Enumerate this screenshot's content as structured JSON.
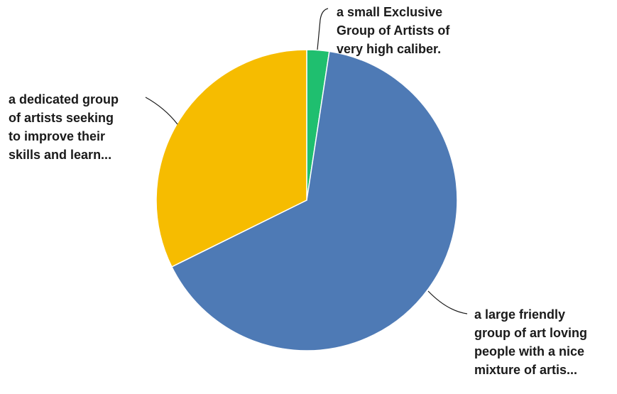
{
  "chart_data": {
    "type": "pie",
    "title": "",
    "start_angle_deg": 0,
    "direction": "clockwise",
    "slices": [
      {
        "category": "a small Exclusive Group of Artists of very high caliber.",
        "label_lines": [
          "a small Exclusive",
          "Group of Artists of",
          "very high caliber."
        ],
        "value": 2.4,
        "color": "#1fbf6f"
      },
      {
        "category": "a large friendly group of art loving people with a nice mixture of artis...",
        "label_lines": [
          "a large friendly",
          "group of art loving",
          "people with a nice",
          "mixture of artis..."
        ],
        "value": 65.3,
        "color": "#4e7ab5"
      },
      {
        "category": "a dedicated group of artists seeking to improve their skills and learn...",
        "label_lines": [
          "a dedicated group",
          "of artists seeking",
          "to improve their",
          "skills and learn..."
        ],
        "value": 32.3,
        "color": "#f6bc00"
      }
    ],
    "legend": "none",
    "data_labels": "outside-with-leader-lines"
  }
}
